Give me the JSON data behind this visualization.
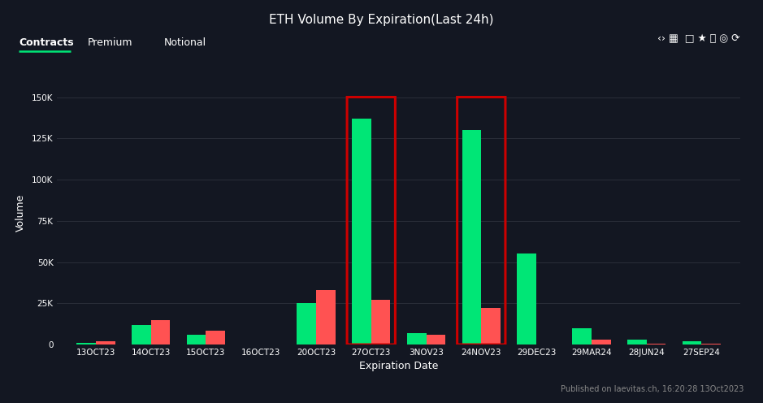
{
  "title": "ETH Volume By Expiration(Last 24h)",
  "xlabel": "Expiration Date",
  "ylabel": "Volume",
  "background_color": "#131722",
  "grid_color": "#2a2e39",
  "text_color": "#ffffff",
  "categories": [
    "13OCT23",
    "14OCT23",
    "15OCT23",
    "16OCT23",
    "20OCT23",
    "27OCT23",
    "3NOV23",
    "24NOV23",
    "29DEC23",
    "29MAR24",
    "28JUN24",
    "27SEP24"
  ],
  "calls": [
    1000,
    12000,
    6000,
    0,
    25000,
    137000,
    7000,
    130000,
    55000,
    10000,
    3000,
    2000
  ],
  "puts": [
    2000,
    15000,
    8500,
    0,
    33000,
    27000,
    6000,
    22000,
    0,
    3000,
    500,
    500
  ],
  "calls_color": "#00e676",
  "puts_color": "#ff5252",
  "highlight_indices": [
    5,
    7
  ],
  "highlight_color": "#cc0000",
  "tab_labels": [
    "Contracts",
    "Premium",
    "Notional"
  ],
  "active_tab": 0,
  "footer_text": "Published on laevitas.ch, 16:20:28 13Oct2023",
  "ylim": [
    0,
    160000
  ],
  "yticks": [
    0,
    25000,
    50000,
    75000,
    100000,
    125000,
    150000
  ]
}
